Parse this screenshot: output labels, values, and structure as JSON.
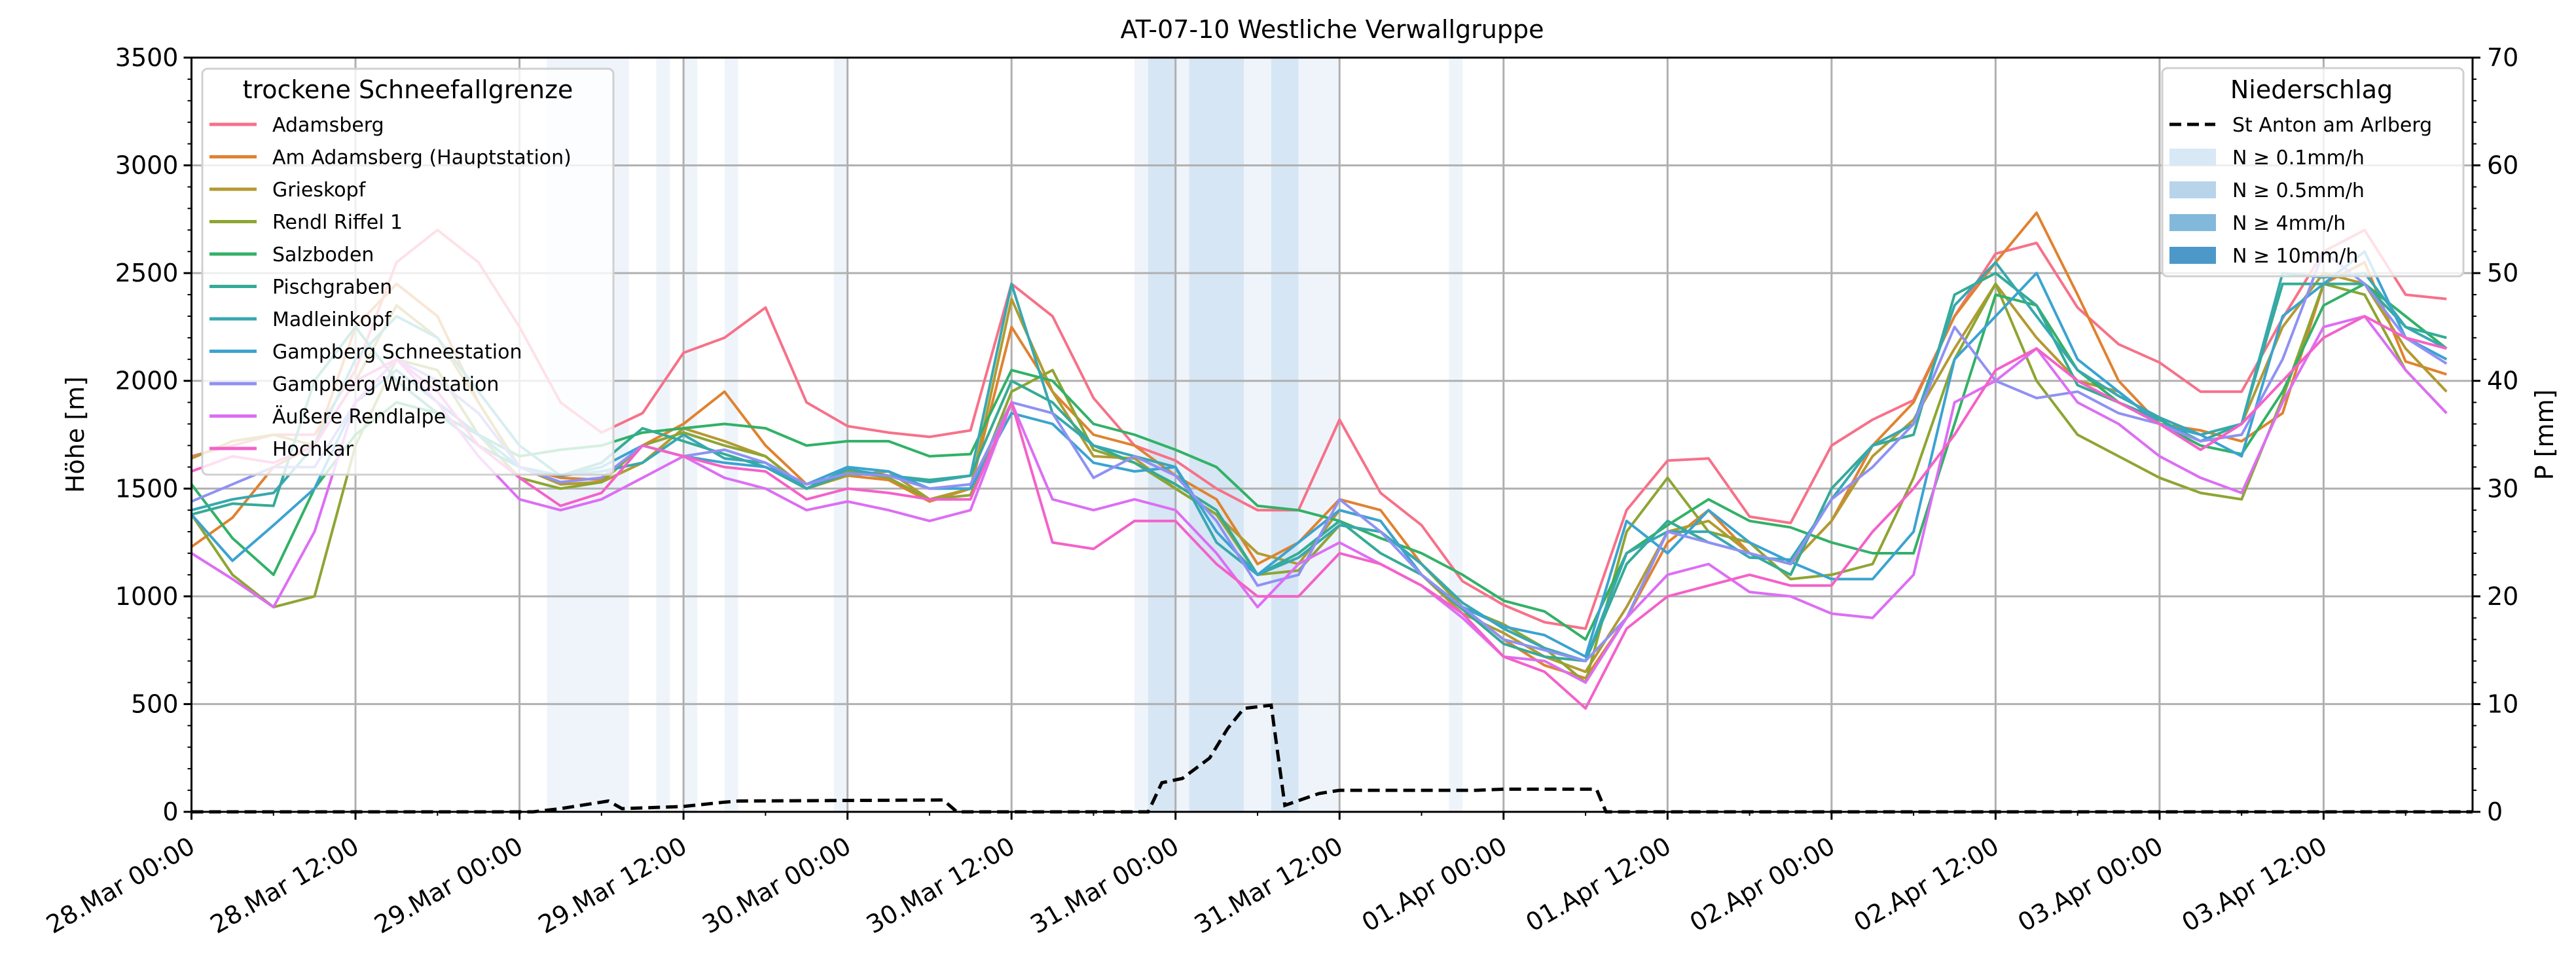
{
  "chart_data": {
    "type": "line",
    "title": "AT-07-10 Westliche Verwallgruppe",
    "ylabel": "Höhe [m]",
    "ylabel_right": "P [mm]",
    "ylim": [
      0,
      3500
    ],
    "ylim_right": [
      0,
      70
    ],
    "xlim_hours": [
      0,
      166.9
    ],
    "x_start": "28.Mar 00:00",
    "x_step_hours": 3,
    "grid": true,
    "x_tick_labels": [
      "28.Mar 00:00",
      "28.Mar 12:00",
      "29.Mar 00:00",
      "29.Mar 12:00",
      "30.Mar 00:00",
      "30.Mar 12:00",
      "31.Mar 00:00",
      "31.Mar 12:00",
      "01.Apr 00:00",
      "01.Apr 12:00",
      "02.Apr 00:00",
      "02.Apr 12:00",
      "03.Apr 00:00",
      "03.Apr 12:00"
    ],
    "y_tick_labels": [
      "0",
      "500",
      "1000",
      "1500",
      "2000",
      "2500",
      "3000",
      "3500"
    ],
    "y_right_tick_labels": [
      "0",
      "10",
      "20",
      "30",
      "40",
      "50",
      "60",
      "70"
    ],
    "legend_left": {
      "title": "trockene Schneefallgrenze",
      "placement": "top-left"
    },
    "legend_right": {
      "title": "Niederschlag",
      "placement": "top-right"
    },
    "series": [
      {
        "name": "Adamsberg",
        "color": "#f77189",
        "values": [
          1650,
          1700,
          1750,
          1750,
          2050,
          2550,
          2700,
          2550,
          2250,
          1900,
          1760,
          1850,
          2130,
          2200,
          2340,
          1900,
          1790,
          1760,
          1740,
          1770,
          2450,
          2300,
          1920,
          1700,
          1630,
          1500,
          1400,
          1400,
          1820,
          1480,
          1330,
          1070,
          960,
          880,
          850,
          1400,
          1630,
          1640,
          1370,
          1340,
          1700,
          1820,
          1910,
          2300,
          2590,
          2640,
          2340,
          2170,
          2085,
          1950,
          1950,
          2290,
          2600,
          2700,
          2400,
          2380
        ]
      },
      {
        "name": "Am Adamsberg (Hauptstation)",
        "color": "#e0822f",
        "values": [
          1230,
          1365,
          1600,
          1700,
          2250,
          2450,
          2300,
          1900,
          1600,
          1550,
          1540,
          1700,
          1800,
          1950,
          1700,
          1520,
          1560,
          1540,
          1440,
          1500,
          2250,
          1950,
          1750,
          1700,
          1560,
          1450,
          1150,
          1250,
          1450,
          1400,
          1150,
          950,
          800,
          680,
          620,
          900,
          1250,
          1400,
          1200,
          1150,
          1350,
          1700,
          1900,
          2300,
          2550,
          2780,
          2400,
          2000,
          1800,
          1770,
          1720,
          1850,
          2450,
          2550,
          2090,
          2030
        ]
      },
      {
        "name": "Grieskopf",
        "color": "#b39a31",
        "values": [
          1640,
          1720,
          1750,
          1700,
          2000,
          2350,
          2200,
          1900,
          1600,
          1520,
          1530,
          1620,
          1780,
          1720,
          1650,
          1500,
          1560,
          1580,
          1450,
          1500,
          2380,
          1950,
          1650,
          1640,
          1500,
          1380,
          1200,
          1150,
          1400,
          1350,
          1100,
          920,
          830,
          720,
          650,
          950,
          1300,
          1350,
          1200,
          1150,
          1350,
          1650,
          1820,
          2150,
          2450,
          2200,
          2000,
          1950,
          1800,
          1750,
          1800,
          2250,
          2500,
          2450,
          2150,
          1950
        ]
      },
      {
        "name": "Rendl Riffel 1",
        "color": "#8ea532",
        "values": [
          1380,
          1100,
          950,
          1000,
          1700,
          2100,
          2050,
          1750,
          1550,
          1500,
          1530,
          1700,
          1760,
          1700,
          1650,
          1500,
          1580,
          1550,
          1450,
          1470,
          1950,
          2050,
          1680,
          1620,
          1500,
          1380,
          1100,
          1120,
          1330,
          1300,
          1150,
          950,
          870,
          760,
          600,
          1300,
          1550,
          1300,
          1250,
          1080,
          1100,
          1150,
          1550,
          2100,
          2450,
          2000,
          1750,
          1650,
          1550,
          1480,
          1450,
          1920,
          2450,
          2400,
          2050,
          1850
        ]
      },
      {
        "name": "Salzboden",
        "color": "#32b166",
        "values": [
          1520,
          1270,
          1100,
          1500,
          1750,
          1900,
          1850,
          1750,
          1650,
          1680,
          1700,
          1760,
          1780,
          1800,
          1780,
          1700,
          1720,
          1720,
          1650,
          1660,
          2050,
          2000,
          1800,
          1750,
          1680,
          1600,
          1420,
          1400,
          1350,
          1270,
          1200,
          1100,
          980,
          930,
          800,
          1200,
          1330,
          1450,
          1350,
          1320,
          1250,
          1200,
          1200,
          1800,
          2400,
          2350,
          2050,
          1900,
          1800,
          1700,
          1660,
          1950,
          2350,
          2450,
          2300,
          2150
        ]
      },
      {
        "name": "Pischgraben",
        "color": "#35ab95",
        "values": [
          1380,
          1430,
          1420,
          2000,
          2250,
          2000,
          1850,
          1700,
          1600,
          1560,
          1620,
          1780,
          1720,
          1660,
          1600,
          1500,
          1570,
          1560,
          1540,
          1560,
          2000,
          1900,
          1700,
          1620,
          1520,
          1400,
          1100,
          1200,
          1350,
          1200,
          1100,
          940,
          780,
          720,
          700,
          1150,
          1350,
          1250,
          1200,
          1100,
          1500,
          1700,
          1750,
          2400,
          2500,
          2350,
          1980,
          1900,
          1820,
          1720,
          1800,
          2450,
          2450,
          2450,
          2250,
          2200
        ]
      },
      {
        "name": "Madleinkopf",
        "color": "#37a8b0",
        "values": [
          1400,
          1450,
          1480,
          1700,
          2100,
          2300,
          2200,
          1950,
          1700,
          1560,
          1580,
          1620,
          1750,
          1640,
          1620,
          1500,
          1590,
          1560,
          1530,
          1560,
          2450,
          1850,
          1700,
          1650,
          1600,
          1250,
          1100,
          1180,
          1330,
          1300,
          1150,
          970,
          850,
          760,
          700,
          1200,
          1300,
          1300,
          1180,
          1170,
          1450,
          1700,
          1800,
          2350,
          2550,
          2300,
          2050,
          1930,
          1830,
          1750,
          1800,
          2500,
          2480,
          2500,
          2250,
          2150
        ]
      },
      {
        "name": "Gampberg Schneestation",
        "color": "#3ba3d0",
        "values": [
          1380,
          1165,
          1330,
          1500,
          1900,
          2050,
          1900,
          1750,
          1600,
          1560,
          1600,
          1700,
          1650,
          1620,
          1600,
          1520,
          1600,
          1580,
          1500,
          1500,
          1850,
          1800,
          1620,
          1580,
          1600,
          1300,
          1100,
          1250,
          1400,
          1350,
          1100,
          950,
          860,
          820,
          720,
          1350,
          1200,
          1400,
          1250,
          1160,
          1080,
          1080,
          1300,
          2100,
          2300,
          2500,
          2100,
          1950,
          1800,
          1750,
          1650,
          2300,
          2450,
          2600,
          2200,
          2100
        ]
      },
      {
        "name": "Gampberg Windstation",
        "color": "#8f91f4",
        "values": [
          1440,
          1520,
          1600,
          1600,
          1900,
          2100,
          2000,
          1850,
          1600,
          1530,
          1550,
          1700,
          1650,
          1680,
          1620,
          1520,
          1570,
          1560,
          1500,
          1520,
          1900,
          1850,
          1550,
          1650,
          1560,
          1350,
          1050,
          1100,
          1450,
          1300,
          1100,
          950,
          800,
          750,
          700,
          900,
          1300,
          1250,
          1200,
          1150,
          1450,
          1600,
          1800,
          2250,
          2000,
          1920,
          1950,
          1850,
          1800,
          1720,
          1750,
          2100,
          2600,
          2450,
          2200,
          2080
        ]
      },
      {
        "name": "Äußere Rendlalpe",
        "color": "#dc6ef4",
        "values": [
          1200,
          1080,
          950,
          1300,
          1900,
          2100,
          1900,
          1650,
          1450,
          1400,
          1450,
          1550,
          1650,
          1550,
          1500,
          1400,
          1440,
          1400,
          1350,
          1400,
          1900,
          1450,
          1400,
          1450,
          1400,
          1200,
          950,
          1150,
          1250,
          1150,
          1050,
          900,
          720,
          700,
          600,
          900,
          1100,
          1150,
          1020,
          1000,
          920,
          900,
          1100,
          1900,
          2000,
          2150,
          1900,
          1800,
          1650,
          1550,
          1480,
          1900,
          2250,
          2300,
          2050,
          1850
        ]
      },
      {
        "name": "Hochkar",
        "color": "#f461c9",
        "values": [
          1580,
          1650,
          1620,
          1700,
          2000,
          2100,
          1950,
          1700,
          1550,
          1420,
          1480,
          1700,
          1650,
          1600,
          1580,
          1450,
          1500,
          1480,
          1450,
          1450,
          1900,
          1250,
          1220,
          1350,
          1350,
          1150,
          1000,
          1000,
          1200,
          1150,
          1050,
          920,
          720,
          650,
          480,
          850,
          1000,
          1050,
          1100,
          1050,
          1050,
          1300,
          1500,
          1750,
          2050,
          2150,
          2000,
          1900,
          1800,
          1680,
          1800,
          2000,
          2200,
          2300,
          2200,
          2150
        ]
      }
    ],
    "precipitation": {
      "name": "St Anton am Arlberg",
      "color": "#000000",
      "points_hours_mm": [
        [
          0,
          0
        ],
        [
          25,
          0
        ],
        [
          27,
          0.3
        ],
        [
          30.5,
          1.0
        ],
        [
          31.5,
          0.3
        ],
        [
          36,
          0.5
        ],
        [
          39,
          0.9
        ],
        [
          40,
          1.0
        ],
        [
          55,
          1.1
        ],
        [
          56,
          0
        ],
        [
          70,
          0
        ],
        [
          71,
          2.7
        ],
        [
          72.5,
          3.1
        ],
        [
          74.5,
          5
        ],
        [
          75.8,
          7.7
        ],
        [
          77,
          9.6
        ],
        [
          79,
          9.9
        ],
        [
          80,
          0.6
        ],
        [
          82.5,
          1.7
        ],
        [
          84,
          2
        ],
        [
          94,
          2
        ],
        [
          96,
          2.1
        ],
        [
          102.8,
          2.1
        ],
        [
          103.5,
          0
        ],
        [
          166.9,
          0
        ]
      ]
    },
    "precip_classes": [
      {
        "label": "N ≥ 0.1mm/h",
        "color": "#d9e8f5"
      },
      {
        "label": "N ≥ 0.5mm/h",
        "color": "#b7d4ea"
      },
      {
        "label": "N ≥ 4mm/h",
        "color": "#82b9db"
      },
      {
        "label": "N ≥ 10mm/h",
        "color": "#4b98c9"
      }
    ],
    "precip_bands_hours": [
      {
        "start": 26,
        "end": 32,
        "class": 0
      },
      {
        "start": 34,
        "end": 35,
        "class": 0
      },
      {
        "start": 36,
        "end": 37,
        "class": 0
      },
      {
        "start": 39,
        "end": 40,
        "class": 0
      },
      {
        "start": 47,
        "end": 48,
        "class": 0
      },
      {
        "start": 69,
        "end": 70,
        "class": 0
      },
      {
        "start": 70,
        "end": 72,
        "class": 1
      },
      {
        "start": 72,
        "end": 73,
        "class": 0
      },
      {
        "start": 73,
        "end": 77,
        "class": 1
      },
      {
        "start": 77,
        "end": 79,
        "class": 0
      },
      {
        "start": 79,
        "end": 81,
        "class": 1
      },
      {
        "start": 81,
        "end": 84,
        "class": 0
      },
      {
        "start": 92,
        "end": 93,
        "class": 0
      }
    ]
  }
}
